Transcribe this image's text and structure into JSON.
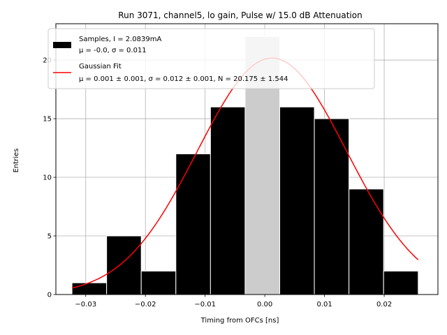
{
  "chart_data": {
    "type": "bar",
    "title": "Run 3071, channel5, lo gain, Pulse w/ 15.0 dB Attenuation",
    "xlabel": "Timing from OFCs [ns]",
    "ylabel": "Entries",
    "xlim": [
      -0.035,
      0.029
    ],
    "ylim": [
      0,
      23.1
    ],
    "grid": true,
    "xticks": [
      -0.03,
      -0.02,
      -0.01,
      0.0,
      0.01,
      0.02
    ],
    "xtick_labels": [
      "−0.03",
      "−0.02",
      "−0.01",
      "0.00",
      "0.01",
      "0.02"
    ],
    "yticks": [
      0,
      5,
      10,
      15,
      20
    ],
    "ytick_labels": [
      "0",
      "5",
      "10",
      "15",
      "20"
    ],
    "bin_edges": [
      -0.0323,
      -0.0265,
      -0.0207,
      -0.0149,
      -0.0091,
      -0.0033,
      0.0025,
      0.0083,
      0.0141,
      0.0199,
      0.0257
    ],
    "series": [
      {
        "name": "Samples, I = 2.0839mA",
        "stats": "μ = -0.0, σ = 0.011",
        "color": "#000000",
        "values": [
          1,
          5,
          2,
          12,
          16,
          22,
          16,
          15,
          9,
          2
        ]
      },
      {
        "name": "Gaussian Fit",
        "stats": "μ = 0.001 ± 0.001, σ = 0.012 ± 0.001, N = 20.175 ± 1.544",
        "color": "#ff0000",
        "fit": {
          "mu": 0.0012,
          "sigma": 0.0125,
          "amplitude": 20.175
        }
      }
    ],
    "highlight_bin": {
      "index": 5,
      "color": "#cccccc"
    },
    "legend": "top-left"
  }
}
